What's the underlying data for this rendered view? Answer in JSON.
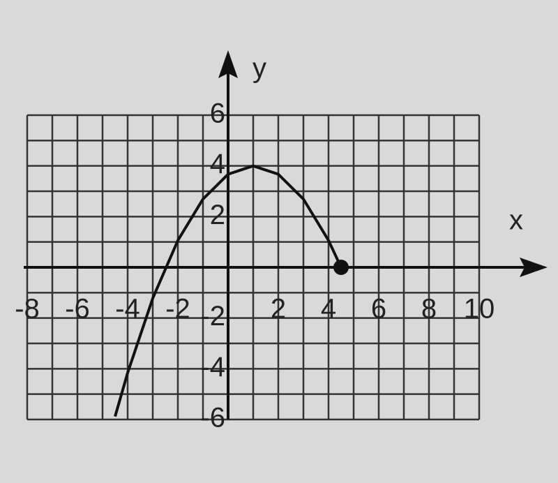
{
  "chart_data": {
    "type": "line",
    "x_label": "x",
    "y_label": "y",
    "xlim": [
      -8,
      10
    ],
    "ylim": [
      -6,
      6
    ],
    "xticks": [
      -8,
      -6,
      -4,
      -2,
      2,
      4,
      6,
      8,
      10
    ],
    "yticks": [
      6,
      4,
      2,
      -2,
      -4,
      -6
    ],
    "grid": true,
    "grid_step": 1,
    "end_marker": true,
    "series": [
      {
        "color": "#111111",
        "x": [
          -4.5,
          -4,
          -3,
          -2,
          -1,
          0,
          1,
          2,
          3,
          4,
          4.5
        ],
        "values": [
          -5.88,
          -4.16,
          -1.22,
          1.06,
          2.69,
          3.67,
          4,
          3.67,
          2.69,
          1.06,
          0
        ]
      }
    ]
  }
}
